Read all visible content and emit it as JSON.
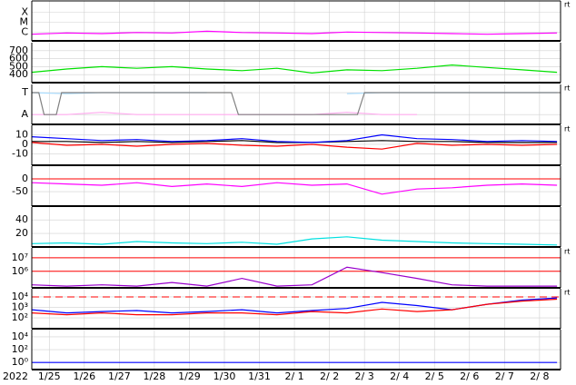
{
  "shared_x": {
    "xlim": [
      0,
      15.1
    ],
    "label": "2022",
    "xticks": [
      {
        "value": 0.5,
        "label": "1/25"
      },
      {
        "value": 1.5,
        "label": "1/26"
      },
      {
        "value": 2.5,
        "label": "1/27"
      },
      {
        "value": 3.5,
        "label": "1/28"
      },
      {
        "value": 4.5,
        "label": "1/29"
      },
      {
        "value": 5.5,
        "label": "1/30"
      },
      {
        "value": 6.5,
        "label": "1/31"
      },
      {
        "value": 7.5,
        "label": "2/ 1"
      },
      {
        "value": 8.5,
        "label": "2/ 2"
      },
      {
        "value": 9.5,
        "label": "2/ 3"
      },
      {
        "value": 10.5,
        "label": "2/ 4"
      },
      {
        "value": 11.5,
        "label": "2/ 5"
      },
      {
        "value": 12.5,
        "label": "2/ 6"
      },
      {
        "value": 13.5,
        "label": "2/ 7"
      },
      {
        "value": 14.5,
        "label": "2/ 8"
      }
    ]
  },
  "chart_data": [
    {
      "type": "line",
      "log": true,
      "ylim": [
        1.3e-07,
        0.0013
      ],
      "annotation": "rt",
      "yticks": [
        {
          "value": 1e-06,
          "label": "C"
        },
        {
          "value": 1e-05,
          "label": "M"
        },
        {
          "value": 0.0001,
          "label": "X"
        }
      ],
      "x": [
        0,
        1,
        2,
        3,
        4,
        5,
        6,
        7,
        8,
        9,
        10,
        11,
        12,
        13,
        14,
        15
      ],
      "series": [
        {
          "color": "#ff00ff",
          "values": [
            6e-07,
            8e-07,
            7e-07,
            9e-07,
            8e-07,
            1.2e-06,
            9e-07,
            8e-07,
            7e-07,
            1e-06,
            9e-07,
            8e-07,
            7e-07,
            6e-07,
            7e-07,
            8e-07
          ]
        }
      ]
    },
    {
      "type": "line",
      "ylim": [
        300,
        800
      ],
      "yticks": [
        400,
        500,
        600,
        700
      ],
      "x": [
        0,
        1,
        2,
        3,
        4,
        5,
        6,
        7,
        8,
        9,
        10,
        11,
        12,
        13,
        14,
        15
      ],
      "series": [
        {
          "color": "#00e000",
          "values": [
            430,
            470,
            500,
            480,
            500,
            470,
            450,
            480,
            420,
            460,
            450,
            480,
            520,
            490,
            460,
            430
          ]
        }
      ]
    },
    {
      "type": "line",
      "ylim": [
        -1.9,
        1.75
      ],
      "annotation": "rt",
      "yticks": [
        {
          "value": -1,
          "label": "A"
        },
        {
          "value": 1,
          "label": "T"
        }
      ],
      "x": [
        0,
        1,
        2,
        3,
        4,
        5,
        6,
        7,
        8,
        9,
        10,
        11,
        12,
        13,
        14,
        15
      ],
      "series": [
        {
          "color": "#aaddff",
          "values": [
            1,
            0.9,
            1,
            1,
            1,
            1,
            null,
            null,
            null,
            0.9,
            1,
            1,
            1,
            1,
            1,
            1
          ]
        },
        {
          "color": "#ffaaee",
          "values": [
            -1,
            -1,
            -0.8,
            -1,
            -1,
            -1,
            -1,
            -1,
            -1,
            -0.8,
            -1,
            -1,
            null,
            null,
            -1,
            null
          ]
        },
        {
          "color": "#808080",
          "x": [
            0,
            0.2,
            0.35,
            0.7,
            0.85,
            5.7,
            5.9,
            9.3,
            9.5,
            15.1
          ],
          "values": [
            1,
            1,
            -1,
            -1,
            1,
            1,
            -1,
            -1,
            1,
            1
          ]
        }
      ]
    },
    {
      "type": "line",
      "ylim": [
        -22,
        20
      ],
      "yticks": [
        -10,
        0,
        10
      ],
      "annotation": "rt",
      "x": [
        0,
        1,
        2,
        3,
        4,
        5,
        6,
        7,
        8,
        9,
        10,
        11,
        12,
        13,
        14,
        15
      ],
      "series": [
        {
          "color": "#000000",
          "values": [
            3,
            3,
            2,
            3,
            2,
            3,
            4,
            2,
            2,
            3,
            4,
            3,
            3,
            2,
            2,
            2
          ]
        },
        {
          "color": "#0000ff",
          "values": [
            8,
            6,
            4,
            5,
            3,
            4,
            6,
            3,
            2,
            4,
            10,
            6,
            5,
            3,
            4,
            3
          ]
        },
        {
          "color": "#ff0000",
          "values": [
            2,
            -1,
            0,
            -2,
            0,
            1,
            -1,
            -2,
            0,
            -3,
            -5,
            1,
            -1,
            0,
            -1,
            0
          ]
        }
      ]
    },
    {
      "type": "line",
      "ylim": [
        -107,
        50
      ],
      "yticks": [
        -50,
        0
      ],
      "hlines": [
        {
          "value": 0,
          "color": "#ff0000"
        }
      ],
      "x": [
        0,
        1,
        2,
        3,
        4,
        5,
        6,
        7,
        8,
        9,
        10,
        11,
        12,
        13,
        14,
        15
      ],
      "series": [
        {
          "color": "#ff00ff",
          "values": [
            -15,
            -20,
            -25,
            -15,
            -30,
            -20,
            -30,
            -15,
            -25,
            -20,
            -60,
            -40,
            -35,
            -25,
            -20,
            -25
          ]
        }
      ]
    },
    {
      "type": "line",
      "ylim": [
        0,
        59
      ],
      "yticks": [
        20,
        40
      ],
      "x": [
        0,
        1,
        2,
        3,
        4,
        5,
        6,
        7,
        8,
        9,
        10,
        11,
        12,
        13,
        14,
        15
      ],
      "series": [
        {
          "color": "#00e0e0",
          "values": [
            5,
            6,
            4,
            8,
            6,
            5,
            7,
            4,
            12,
            15,
            10,
            8,
            6,
            5,
            4,
            3
          ]
        }
      ]
    },
    {
      "type": "line",
      "log": true,
      "ylim": [
        60000,
        54000000
      ],
      "annotation": "rt",
      "yticks": [
        {
          "value": 1000000,
          "label": "10⁶"
        },
        {
          "value": 10000000,
          "label": "10⁷"
        }
      ],
      "hlines": [
        {
          "value": 1000000,
          "color": "#ff0000"
        },
        {
          "value": 10000000,
          "color": "#ff0000"
        }
      ],
      "x": [
        0,
        1,
        2,
        3,
        4,
        5,
        6,
        7,
        8,
        9,
        10,
        11,
        12,
        13,
        14,
        15
      ],
      "series": [
        {
          "color": "#9900cc",
          "values": [
            100000,
            80000,
            100000,
            80000,
            150000,
            80000,
            300000,
            80000,
            100000,
            2000000,
            800000,
            300000,
            100000,
            80000,
            80000,
            80000
          ]
        }
      ]
    },
    {
      "type": "line",
      "log": true,
      "ylim": [
        9.3,
        60000
      ],
      "annotation": "rt",
      "yticks": [
        {
          "value": 100,
          "label": "10²"
        },
        {
          "value": 1000,
          "label": "10³"
        },
        {
          "value": 10000,
          "label": "10⁴"
        }
      ],
      "hlines": [
        {
          "value": 10000,
          "color": "#ff0000",
          "dashed": true
        }
      ],
      "x": [
        0,
        1,
        2,
        3,
        4,
        5,
        6,
        7,
        8,
        9,
        10,
        11,
        12,
        13,
        14,
        15
      ],
      "series": [
        {
          "color": "#0000ff",
          "values": [
            600,
            300,
            400,
            500,
            300,
            400,
            600,
            300,
            500,
            800,
            3000,
            1500,
            600,
            2000,
            5000,
            8000
          ]
        },
        {
          "color": "#ff0000",
          "values": [
            300,
            200,
            300,
            200,
            200,
            300,
            300,
            200,
            400,
            300,
            700,
            400,
            600,
            2000,
            4000,
            6000
          ]
        }
      ]
    },
    {
      "type": "line",
      "log": true,
      "ylim": [
        0.08,
        130000
      ],
      "yticks": [
        {
          "value": 1,
          "label": "10⁰"
        },
        {
          "value": 100,
          "label": "10²"
        },
        {
          "value": 10000,
          "label": "10⁴"
        }
      ],
      "x": [
        0,
        1,
        2,
        3,
        4,
        5,
        6,
        7,
        8,
        9,
        10,
        11,
        12,
        13,
        14,
        15
      ],
      "series": [
        {
          "color": "#0000ff",
          "values": [
            1,
            1,
            1,
            1,
            1,
            1,
            1,
            1,
            1,
            1,
            1,
            1,
            1,
            1,
            1,
            1
          ]
        }
      ]
    }
  ]
}
